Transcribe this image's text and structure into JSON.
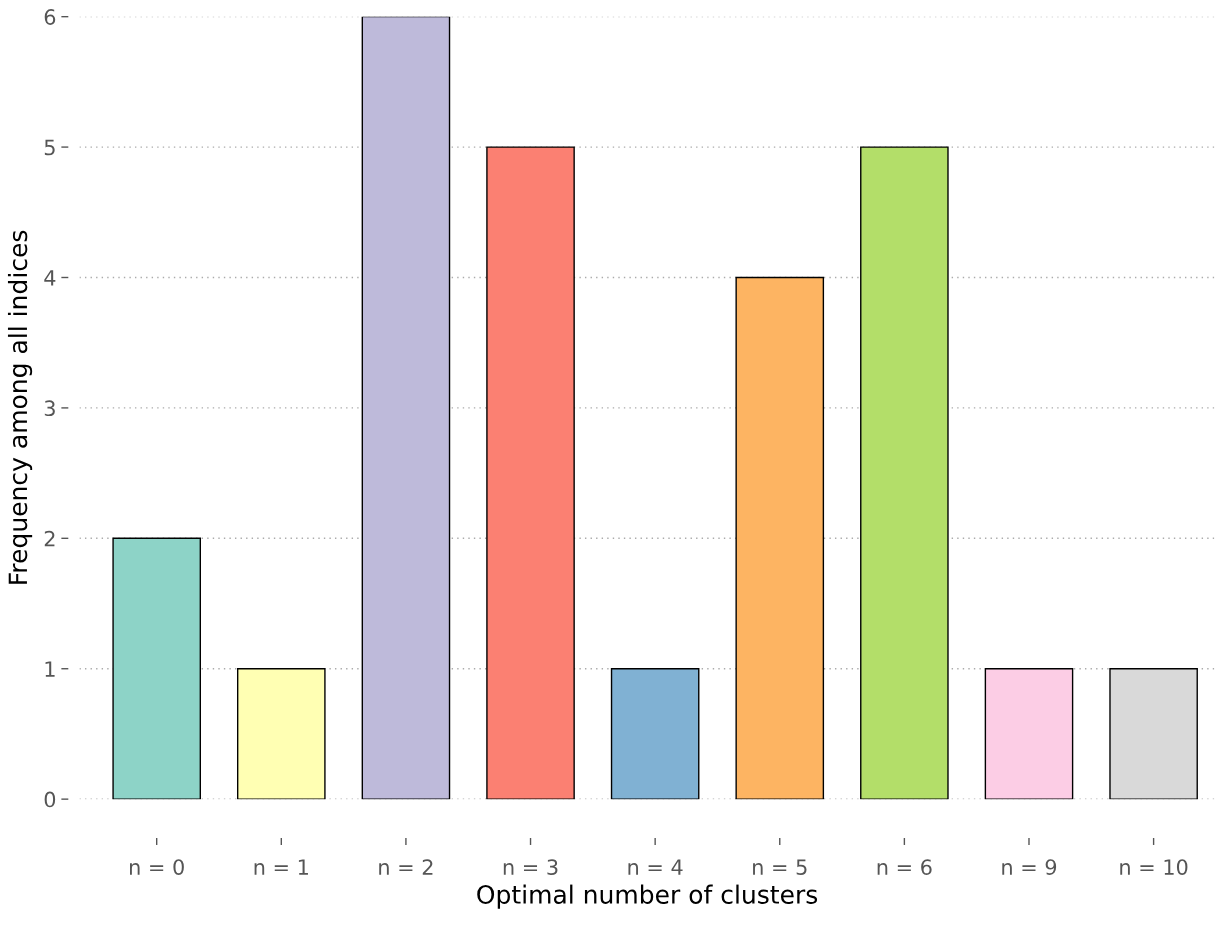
{
  "chart_data": {
    "type": "bar",
    "xlabel": "Optimal number of clusters",
    "ylabel": "Frequency among all indices",
    "categories": [
      "n = 0",
      "n = 1",
      "n = 2",
      "n = 3",
      "n = 4",
      "n = 5",
      "n = 6",
      "n = 9",
      "n = 10"
    ],
    "values": [
      2,
      1,
      6,
      5,
      1,
      4,
      5,
      1,
      1
    ],
    "colors": [
      "#8dd3c7",
      "#ffffb3",
      "#bebada",
      "#fb8072",
      "#80b1d3",
      "#fdb462",
      "#b3de69",
      "#fccde5",
      "#d9d9d9"
    ],
    "ylim": [
      0,
      6
    ],
    "yticks": [
      0,
      1,
      2,
      3,
      4,
      5,
      6
    ],
    "grid": "y"
  }
}
